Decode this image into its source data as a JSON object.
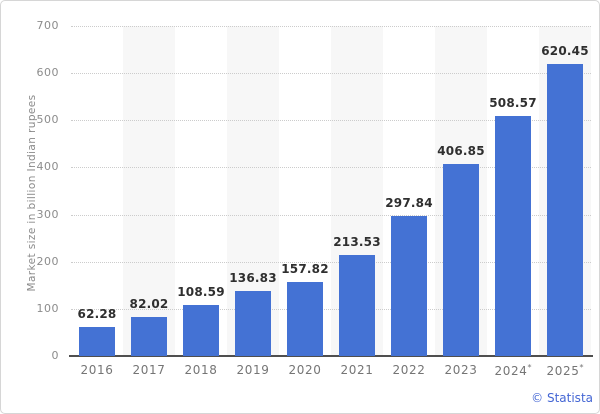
{
  "chart_data": {
    "type": "bar",
    "title": "",
    "categories": [
      "2016",
      "2017",
      "2018",
      "2019",
      "2020",
      "2021",
      "2022",
      "2023",
      "2024*",
      "2025*"
    ],
    "values": [
      62.28,
      82.02,
      108.59,
      136.83,
      157.82,
      213.53,
      297.84,
      406.85,
      508.57,
      620.45
    ],
    "value_labels": [
      "62.28",
      "82.02",
      "108.59",
      "136.83",
      "157.82",
      "213.53",
      "297.84",
      "406.85",
      "508.57",
      "620.45"
    ],
    "xlabel": "",
    "ylabel": "Market size in billion Indian rupees",
    "ylim": [
      0,
      700
    ],
    "yticks": [
      0,
      100,
      200,
      300,
      400,
      500,
      600,
      700
    ],
    "grid": "horizontal-dotted",
    "legend": "none",
    "background_stripes": "alternating columns starting at second category",
    "colors": {
      "bar": "#4472d4",
      "stripe": "#f7f7f7",
      "gridline": "#cccccc",
      "axis_line": "#4f4f4f",
      "value_label": "#2f2f2f",
      "tick_label": "#8c8c8c",
      "category_label": "#757575",
      "y_title": "#8a8a8a",
      "credit": "#4466d4"
    }
  },
  "credit": {
    "label": "© Statista"
  }
}
